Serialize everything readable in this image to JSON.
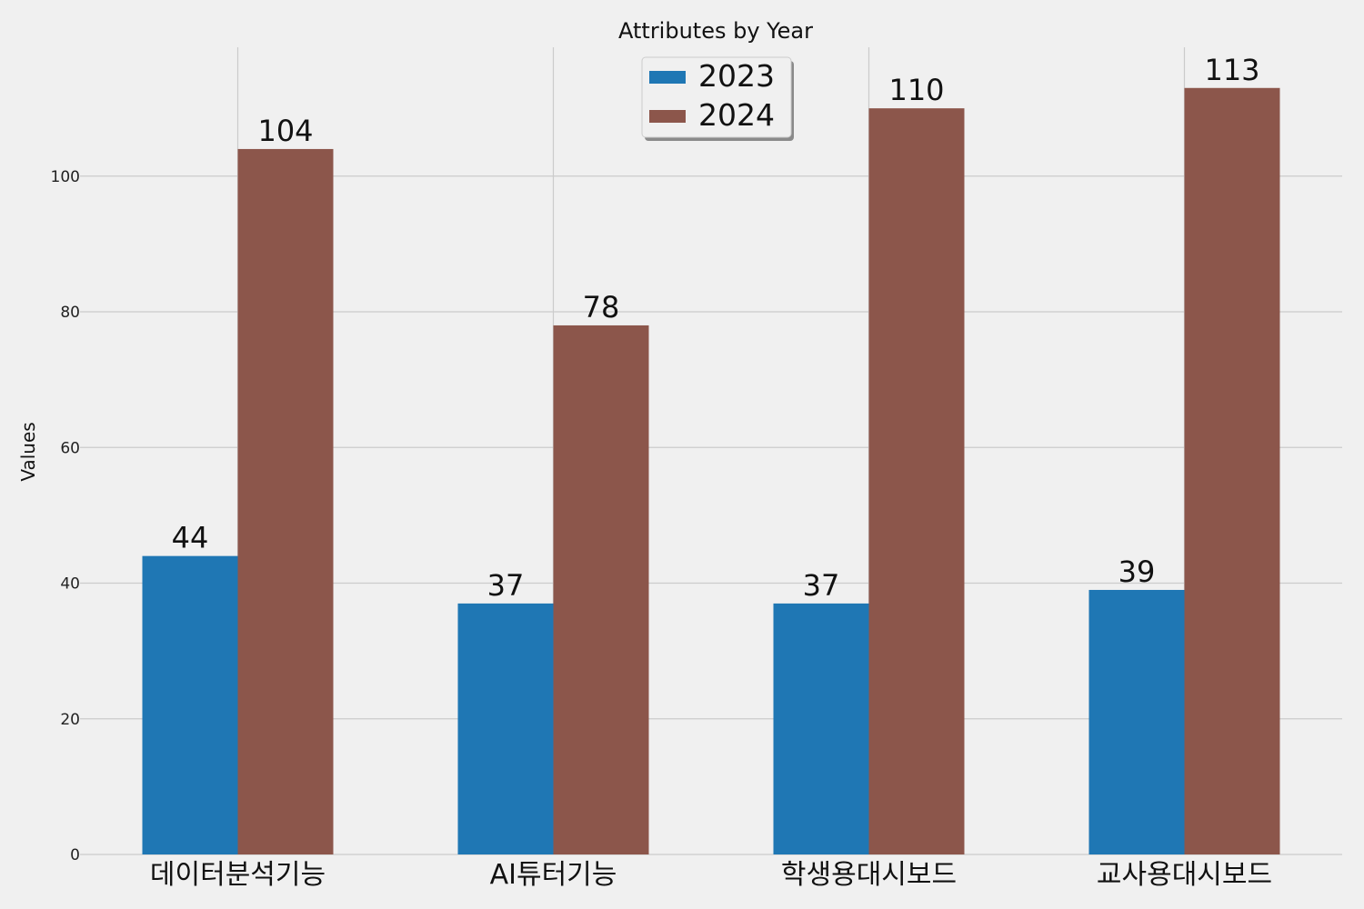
{
  "chart_data": {
    "type": "bar",
    "title": "Attributes by Year",
    "xlabel": "",
    "ylabel": "Values",
    "categories": [
      "데이터분석기능",
      "AI튜터기능",
      "학생용대시보드",
      "교사용대시보드"
    ],
    "series": [
      {
        "name": "2023",
        "values": [
          44,
          37,
          37,
          39
        ],
        "color": "#1f77b4"
      },
      {
        "name": "2024",
        "values": [
          104,
          78,
          110,
          113
        ],
        "color": "#8c564b"
      }
    ],
    "ylim": [
      0,
      119
    ],
    "yticks": [
      0,
      20,
      40,
      60,
      80,
      100
    ],
    "grid": true,
    "legend_position": "top-center",
    "show_value_labels": true
  }
}
